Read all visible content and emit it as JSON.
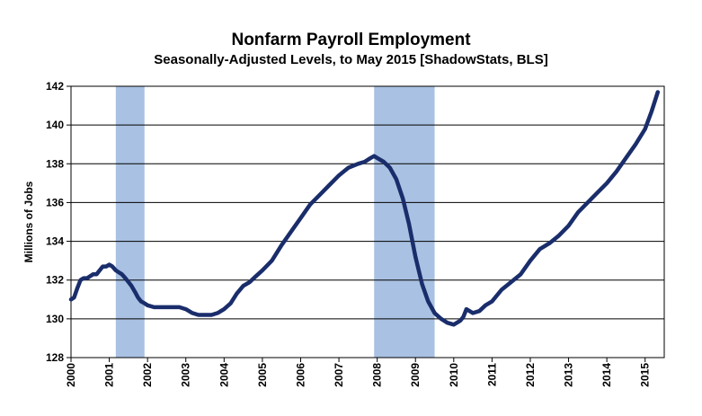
{
  "chart_data": {
    "type": "line",
    "title": "Nonfarm Payroll Employment",
    "subtitle": "Seasonally-Adjusted Levels, to May 2015 [ShadowStats, BLS]",
    "ylabel": "Millions of Jobs",
    "xlabel": "",
    "ylim": [
      128,
      142
    ],
    "yticks": [
      128,
      130,
      132,
      134,
      136,
      138,
      140,
      142
    ],
    "xlim": [
      2000.0,
      2015.5
    ],
    "xticks": [
      "2000",
      "2001",
      "2002",
      "2003",
      "2004",
      "2005",
      "2006",
      "2007",
      "2008",
      "2009",
      "2010",
      "2011",
      "2012",
      "2013",
      "2014",
      "2015"
    ],
    "grid": true,
    "legend": "none",
    "recessions": [
      [
        2001.17,
        2001.92
      ],
      [
        2007.92,
        2009.5
      ]
    ],
    "colors": {
      "line": "#1a2d6b",
      "recession": "#a9c1e2",
      "grid": "#000000"
    },
    "series": [
      {
        "x": [
          2000.0,
          2000.08,
          2000.17,
          2000.25,
          2000.33,
          2000.42,
          2000.5,
          2000.58,
          2000.67,
          2000.75,
          2000.83,
          2000.92,
          2001.0,
          2001.08,
          2001.17,
          2001.25,
          2001.33,
          2001.42,
          2001.5,
          2001.58,
          2001.67,
          2001.75,
          2001.83,
          2001.92,
          2002.0,
          2002.17,
          2002.33,
          2002.5,
          2002.67,
          2002.83,
          2003.0,
          2003.17,
          2003.33,
          2003.5,
          2003.67,
          2003.83,
          2004.0,
          2004.17,
          2004.33,
          2004.5,
          2004.67,
          2004.83,
          2005.0,
          2005.25,
          2005.5,
          2005.75,
          2006.0,
          2006.25,
          2006.5,
          2006.75,
          2007.0,
          2007.25,
          2007.5,
          2007.67,
          2007.83,
          2007.92,
          2008.0,
          2008.17,
          2008.33,
          2008.5,
          2008.67,
          2008.83,
          2009.0,
          2009.17,
          2009.33,
          2009.5,
          2009.67,
          2009.83,
          2010.0,
          2010.17,
          2010.25,
          2010.33,
          2010.5,
          2010.67,
          2010.83,
          2011.0,
          2011.25,
          2011.5,
          2011.75,
          2012.0,
          2012.25,
          2012.5,
          2012.75,
          2013.0,
          2013.25,
          2013.5,
          2013.75,
          2014.0,
          2014.25,
          2014.5,
          2014.75,
          2015.0,
          2015.17,
          2015.33
        ],
        "y": [
          131.0,
          131.1,
          131.6,
          132.0,
          132.1,
          132.1,
          132.2,
          132.3,
          132.3,
          132.5,
          132.7,
          132.7,
          132.8,
          132.7,
          132.5,
          132.4,
          132.3,
          132.1,
          131.9,
          131.7,
          131.4,
          131.1,
          130.9,
          130.8,
          130.7,
          130.6,
          130.6,
          130.6,
          130.6,
          130.6,
          130.5,
          130.3,
          130.2,
          130.2,
          130.2,
          130.3,
          130.5,
          130.8,
          131.3,
          131.7,
          131.9,
          132.2,
          132.5,
          133.0,
          133.8,
          134.5,
          135.2,
          135.9,
          136.4,
          136.9,
          137.4,
          137.8,
          138.0,
          138.1,
          138.3,
          138.4,
          138.3,
          138.1,
          137.8,
          137.2,
          136.2,
          134.9,
          133.2,
          131.8,
          130.9,
          130.3,
          130.0,
          129.8,
          129.7,
          129.9,
          130.1,
          130.5,
          130.3,
          130.4,
          130.7,
          130.9,
          131.5,
          131.9,
          132.3,
          133.0,
          133.6,
          133.9,
          134.3,
          134.8,
          135.5,
          136.0,
          136.5,
          137.0,
          137.6,
          138.3,
          139.0,
          139.8,
          140.7,
          141.7
        ]
      }
    ]
  }
}
